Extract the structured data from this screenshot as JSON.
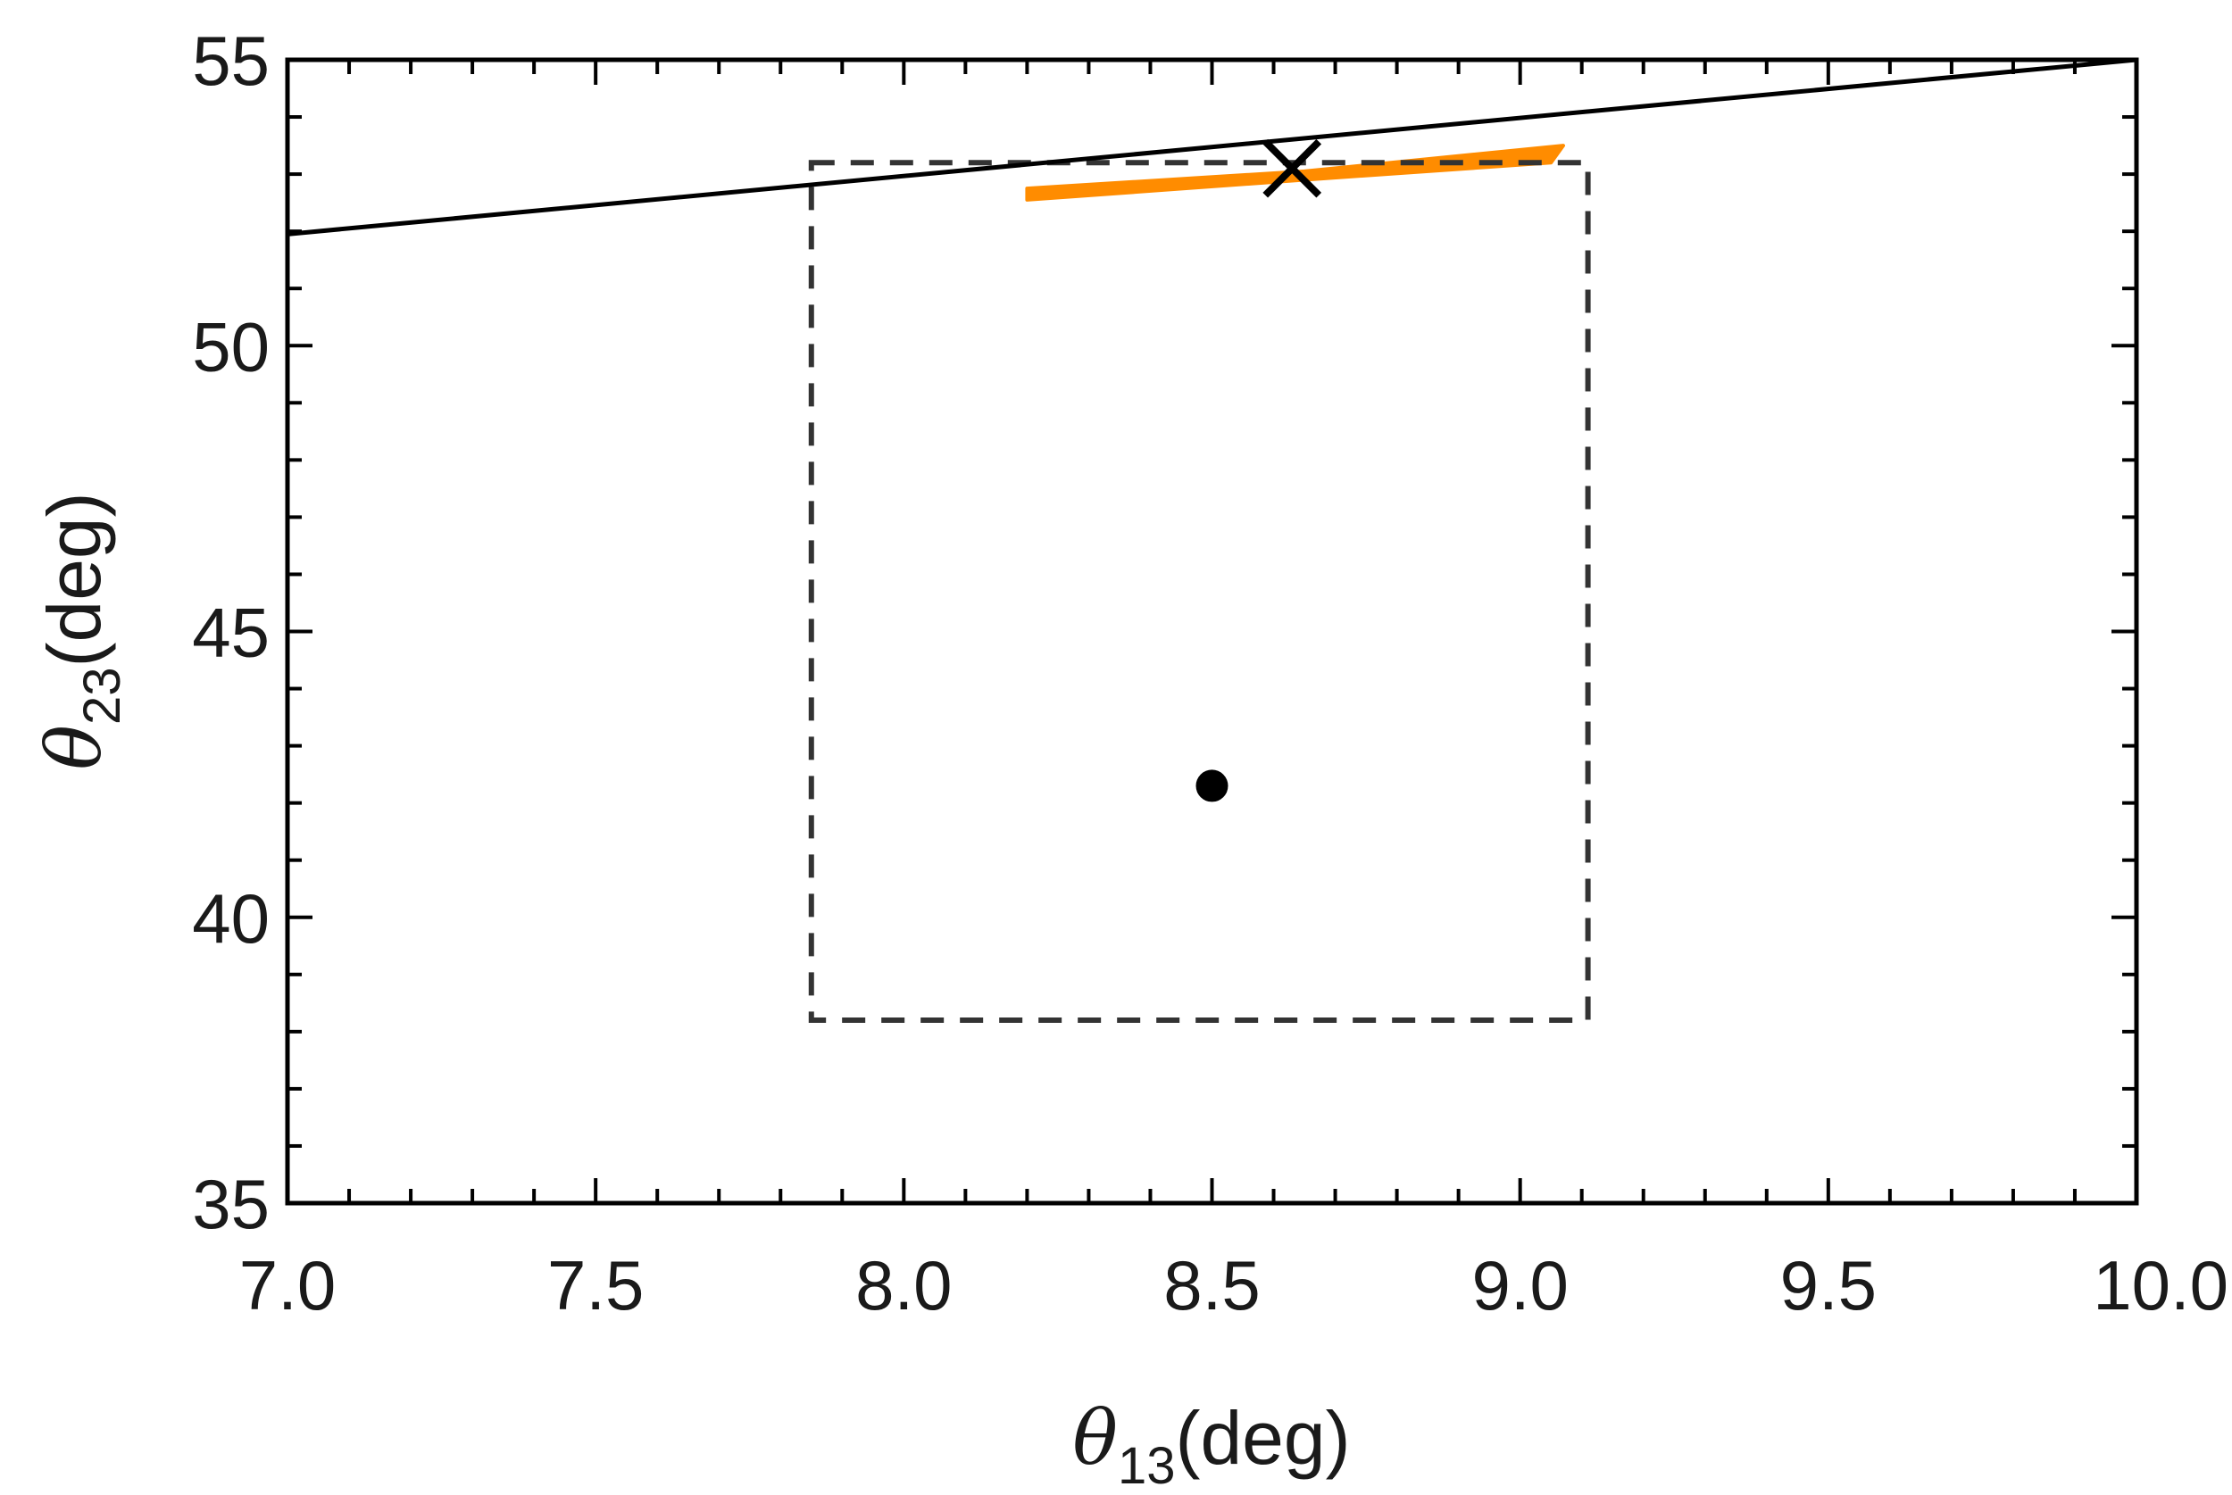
{
  "chart_data": {
    "type": "scatter",
    "xlabel": {
      "symbol": "θ",
      "subscript": "13",
      "unit": "(deg)"
    },
    "ylabel": {
      "symbol": "θ",
      "subscript": "23",
      "unit": "(deg)"
    },
    "xlim": [
      7.0,
      10.0
    ],
    "ylim": [
      35,
      55
    ],
    "x_ticks": [
      7.0,
      7.5,
      8.0,
      8.5,
      9.0,
      9.5,
      10.0
    ],
    "x_tick_labels": [
      "7.0",
      "7.5",
      "8.0",
      "8.5",
      "9.0",
      "9.5",
      "10.0"
    ],
    "y_ticks": [
      35,
      40,
      45,
      50,
      55
    ],
    "y_tick_labels": [
      "35",
      "40",
      "45",
      "50",
      "55"
    ],
    "grid": false,
    "colors": {
      "axes": "#000000",
      "region": "#ff8c00",
      "line": "#000000",
      "text": "#1a1a1a"
    },
    "series": [
      {
        "kind": "line",
        "style": "solid",
        "color": "#000000",
        "x": [
          7.0,
          10.0
        ],
        "y": [
          51.95,
          55.0
        ]
      },
      {
        "kind": "rectangle",
        "style": "dashed",
        "color": "#333333",
        "x": [
          7.85,
          9.11
        ],
        "y": [
          38.2,
          53.2
        ]
      },
      {
        "kind": "region",
        "style": "filled",
        "color": "#ff8c00",
        "x": [
          8.2,
          8.65,
          9.05,
          9.07,
          8.65,
          8.2
        ],
        "y": [
          52.55,
          52.9,
          53.2,
          53.5,
          53.05,
          52.75
        ]
      },
      {
        "kind": "marker",
        "marker": "circle",
        "color": "#000000",
        "x": [
          8.5
        ],
        "y": [
          42.3
        ]
      },
      {
        "kind": "marker",
        "marker": "x",
        "color": "#000000",
        "x": [
          8.63
        ],
        "y": [
          53.1
        ]
      }
    ]
  }
}
